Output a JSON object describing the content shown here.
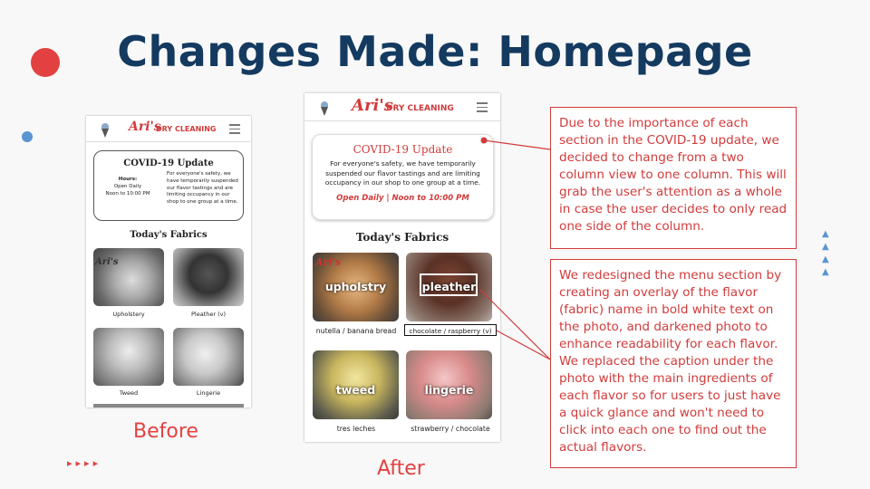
{
  "slide": {
    "title": "Changes Made: Homepage",
    "before_caption": "Before",
    "after_caption": "After",
    "decor_arrows": "▸▸▸▸",
    "decor_triangles": "▲\n▲\n▲\n▲"
  },
  "colors": {
    "title": "#143a60",
    "accent_red": "#e34141",
    "accent_blue": "#5b94d3",
    "brand_red": "#d23b3b"
  },
  "before": {
    "logo_script": "Ari's",
    "logo_text": "DRY CLEANING",
    "covid_title": "COVID-19 Update",
    "hours_label": "Hours:",
    "hours_line1": "Open Daily",
    "hours_line2": "Noon to 10:00 PM",
    "covid_body": "For everyone's safety, we have temporarily suspended our flavor tastings and are limiting occupancy in our shop to one group at a time.",
    "fabrics_title": "Today's Fabrics",
    "fabrics": [
      "Upholstery",
      "Pleather (v)",
      "Tweed",
      "Lingerie"
    ]
  },
  "after": {
    "logo_script": "Ari's",
    "logo_text": "DRY CLEANING",
    "covid_title": "COVID-19 Update",
    "covid_body": "For everyone's safety, we have temporarily suspended our flavor tastings and are limiting occupancy in our shop to one group at a time.",
    "covid_hours": "Open Daily | Noon to 10:00 PM",
    "fabrics_title": "Today's Fabrics",
    "fabrics": [
      {
        "overlay": "upholstry",
        "caption": "nutella / banana bread"
      },
      {
        "overlay": "pleather",
        "caption": "chocolate / raspberry (v)"
      },
      {
        "overlay": "tweed",
        "caption": "tres leches"
      },
      {
        "overlay": "lingerie",
        "caption": "strawberry / chocolate"
      }
    ]
  },
  "notes": {
    "covid": "Due to the importance of each section in the COVID-19 update, we decided to change from a two column view to one column. This will grab the user's attention as a whole in case the user decides to only read one side of the column.",
    "menu": "We redesigned the menu section by creating an overlay of the flavor (fabric) name in bold white text on the photo, and darkened photo to enhance readability for each flavor. We replaced the caption under the photo with the main ingredients of each flavor so for users to just have a quick glance and won't need to click into each one to find out the actual flavors."
  }
}
